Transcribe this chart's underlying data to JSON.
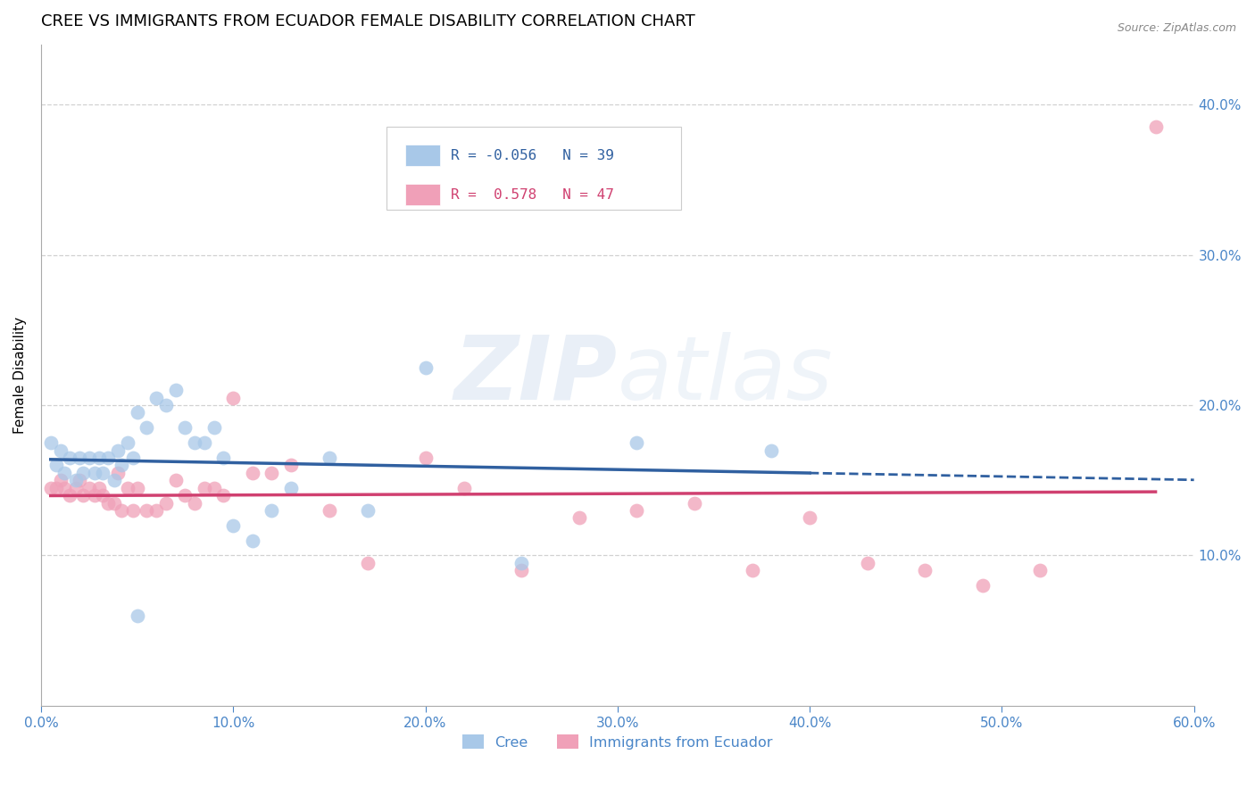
{
  "title": "CREE VS IMMIGRANTS FROM ECUADOR FEMALE DISABILITY CORRELATION CHART",
  "source_text": "Source: ZipAtlas.com",
  "ylabel": "Female Disability",
  "xlim": [
    0.0,
    0.6
  ],
  "ylim": [
    0.0,
    0.44
  ],
  "yticks": [
    0.1,
    0.2,
    0.3,
    0.4
  ],
  "ytick_labels": [
    "10.0%",
    "20.0%",
    "30.0%",
    "40.0%"
  ],
  "xticks": [
    0.0,
    0.1,
    0.2,
    0.3,
    0.4,
    0.5,
    0.6
  ],
  "xtick_labels": [
    "0.0%",
    "10.0%",
    "20.0%",
    "30.0%",
    "40.0%",
    "50.0%",
    "60.0%"
  ],
  "cree": {
    "name": "Cree",
    "R": -0.056,
    "N": 39,
    "dot_color": "#a8c8e8",
    "line_color": "#3060a0",
    "x": [
      0.005,
      0.008,
      0.01,
      0.012,
      0.015,
      0.018,
      0.02,
      0.022,
      0.025,
      0.028,
      0.03,
      0.032,
      0.035,
      0.038,
      0.04,
      0.042,
      0.045,
      0.048,
      0.05,
      0.055,
      0.06,
      0.065,
      0.07,
      0.075,
      0.08,
      0.085,
      0.09,
      0.095,
      0.1,
      0.11,
      0.12,
      0.13,
      0.15,
      0.17,
      0.2,
      0.25,
      0.31,
      0.38,
      0.05
    ],
    "y": [
      0.175,
      0.16,
      0.17,
      0.155,
      0.165,
      0.15,
      0.165,
      0.155,
      0.165,
      0.155,
      0.165,
      0.155,
      0.165,
      0.15,
      0.17,
      0.16,
      0.175,
      0.165,
      0.195,
      0.185,
      0.205,
      0.2,
      0.21,
      0.185,
      0.175,
      0.175,
      0.185,
      0.165,
      0.12,
      0.11,
      0.13,
      0.145,
      0.165,
      0.13,
      0.225,
      0.095,
      0.175,
      0.17,
      0.06
    ]
  },
  "ecuador": {
    "name": "Immigrants from Ecuador",
    "R": 0.578,
    "N": 47,
    "dot_color": "#f0a0b8",
    "line_color": "#d04070",
    "x": [
      0.005,
      0.008,
      0.01,
      0.012,
      0.015,
      0.018,
      0.02,
      0.022,
      0.025,
      0.028,
      0.03,
      0.032,
      0.035,
      0.038,
      0.04,
      0.042,
      0.045,
      0.048,
      0.05,
      0.055,
      0.06,
      0.065,
      0.07,
      0.075,
      0.08,
      0.085,
      0.09,
      0.095,
      0.1,
      0.11,
      0.12,
      0.13,
      0.15,
      0.17,
      0.2,
      0.22,
      0.25,
      0.28,
      0.31,
      0.34,
      0.37,
      0.4,
      0.43,
      0.46,
      0.49,
      0.52,
      0.58
    ],
    "y": [
      0.145,
      0.145,
      0.15,
      0.145,
      0.14,
      0.145,
      0.15,
      0.14,
      0.145,
      0.14,
      0.145,
      0.14,
      0.135,
      0.135,
      0.155,
      0.13,
      0.145,
      0.13,
      0.145,
      0.13,
      0.13,
      0.135,
      0.15,
      0.14,
      0.135,
      0.145,
      0.145,
      0.14,
      0.205,
      0.155,
      0.155,
      0.16,
      0.13,
      0.095,
      0.165,
      0.145,
      0.09,
      0.125,
      0.13,
      0.135,
      0.09,
      0.125,
      0.095,
      0.09,
      0.08,
      0.09,
      0.385
    ]
  },
  "legend": {
    "cree_R": "-0.056",
    "cree_N": "39",
    "ecuador_R": "0.578",
    "ecuador_N": "47"
  },
  "watermark_zip": "ZIP",
  "watermark_atlas": "atlas",
  "background_color": "#ffffff",
  "grid_color": "#cccccc",
  "title_fontsize": 13,
  "tick_color": "#4a86c8"
}
